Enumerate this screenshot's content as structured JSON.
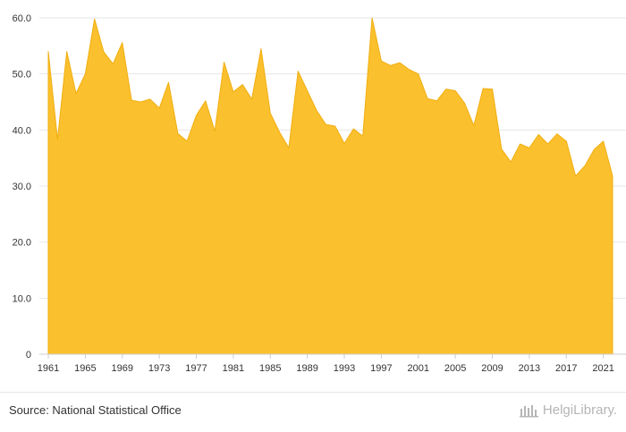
{
  "source_text": "Source: National Statistical Office",
  "brand": {
    "name": "HelgiLibrary.",
    "icon": "helgi-logo-icon"
  },
  "colors": {
    "area_fill": "#FBC02D",
    "area_stroke": "#F0AE10",
    "grid": "#e6e6e6",
    "axis": "#cccccc",
    "text": "#333333",
    "footer_text": "#b5b5b5"
  },
  "chart_data": {
    "type": "area",
    "title": "",
    "xlabel": "",
    "ylabel": "",
    "grid": true,
    "legend": "none",
    "xlim": [
      1961,
      2022
    ],
    "ylim": [
      0,
      60
    ],
    "y_ticks": [
      0,
      10,
      20,
      30,
      40,
      50,
      60
    ],
    "y_tick_labels": [
      "0",
      "10.0",
      "20.0",
      "30.0",
      "40.0",
      "50.0",
      "60.0"
    ],
    "x_ticks": [
      1961,
      1965,
      1969,
      1973,
      1977,
      1981,
      1985,
      1989,
      1993,
      1997,
      2001,
      2005,
      2009,
      2013,
      2017,
      2021
    ],
    "x_tick_labels": [
      "1961",
      "1965",
      "1969",
      "1973",
      "1977",
      "1981",
      "1985",
      "1989",
      "1993",
      "1997",
      "2001",
      "2005",
      "2009",
      "2013",
      "2017",
      "2021"
    ],
    "x": [
      1961,
      1962,
      1963,
      1964,
      1965,
      1966,
      1967,
      1968,
      1969,
      1970,
      1971,
      1972,
      1973,
      1974,
      1975,
      1976,
      1977,
      1978,
      1979,
      1980,
      1981,
      1982,
      1983,
      1984,
      1985,
      1986,
      1987,
      1988,
      1989,
      1990,
      1991,
      1992,
      1993,
      1994,
      1995,
      1996,
      1997,
      1998,
      1999,
      2000,
      2001,
      2002,
      2003,
      2004,
      2005,
      2006,
      2007,
      2008,
      2009,
      2010,
      2011,
      2012,
      2013,
      2014,
      2015,
      2016,
      2017,
      2018,
      2019,
      2020,
      2021,
      2022
    ],
    "values": [
      54.0,
      38.3,
      54.0,
      46.5,
      50.0,
      59.8,
      53.9,
      51.8,
      55.6,
      45.3,
      45.0,
      45.5,
      43.9,
      48.5,
      39.4,
      38.0,
      42.6,
      45.2,
      39.8,
      52.1,
      46.8,
      48.1,
      45.5,
      54.5,
      43.0,
      39.6,
      36.8,
      50.5,
      47.0,
      43.5,
      41.0,
      40.7,
      37.6,
      40.2,
      38.9,
      60.0,
      52.3,
      51.5,
      52.0,
      50.8,
      50.0,
      45.6,
      45.2,
      47.3,
      47.0,
      44.8,
      40.8,
      47.4,
      47.3,
      36.6,
      34.3,
      37.5,
      36.8,
      39.2,
      37.5,
      39.3,
      38.0,
      31.8,
      33.6,
      36.5,
      38.0,
      31.8
    ]
  }
}
